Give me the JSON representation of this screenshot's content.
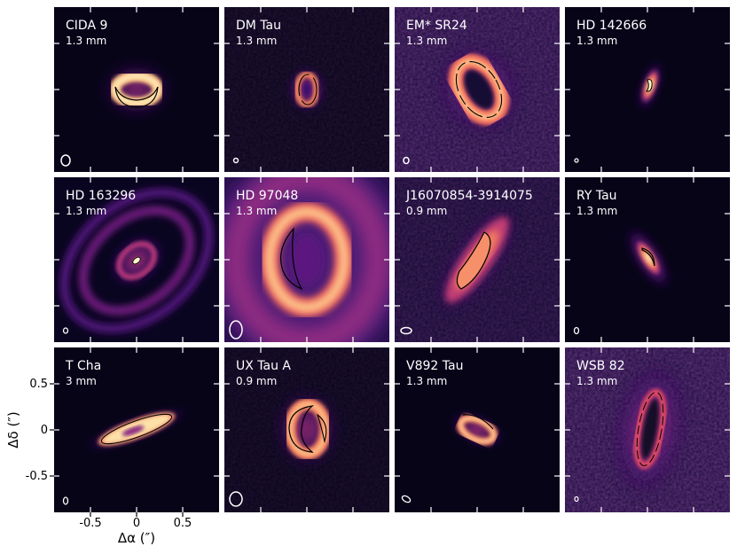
{
  "figure": {
    "colormap": "magma",
    "panels": [
      {
        "name": "CIDA 9",
        "band": "1.3 mm"
      },
      {
        "name": "DM Tau",
        "band": "1.3 mm"
      },
      {
        "name": "EM* SR24",
        "band": "1.3 mm"
      },
      {
        "name": "HD 142666",
        "band": "1.3 mm"
      },
      {
        "name": "HD 163296",
        "band": "1.3 mm"
      },
      {
        "name": "HD 97048",
        "band": "1.3 mm"
      },
      {
        "name": "J16070854-3914075",
        "band": "0.9 mm"
      },
      {
        "name": "RY Tau",
        "band": "1.3 mm"
      },
      {
        "name": "T Cha",
        "band": "3 mm"
      },
      {
        "name": "UX Tau A",
        "band": "0.9 mm"
      },
      {
        "name": "V892 Tau",
        "band": "1.3 mm"
      },
      {
        "name": "WSB 82",
        "band": "1.3 mm"
      }
    ],
    "axes": {
      "x_label": "Δα (″)",
      "y_label": "Δδ (″)",
      "x_ticks": [
        "-0.5",
        "0",
        "0.5"
      ],
      "y_ticks": [
        "0.5",
        "0",
        "-0.5"
      ]
    }
  }
}
